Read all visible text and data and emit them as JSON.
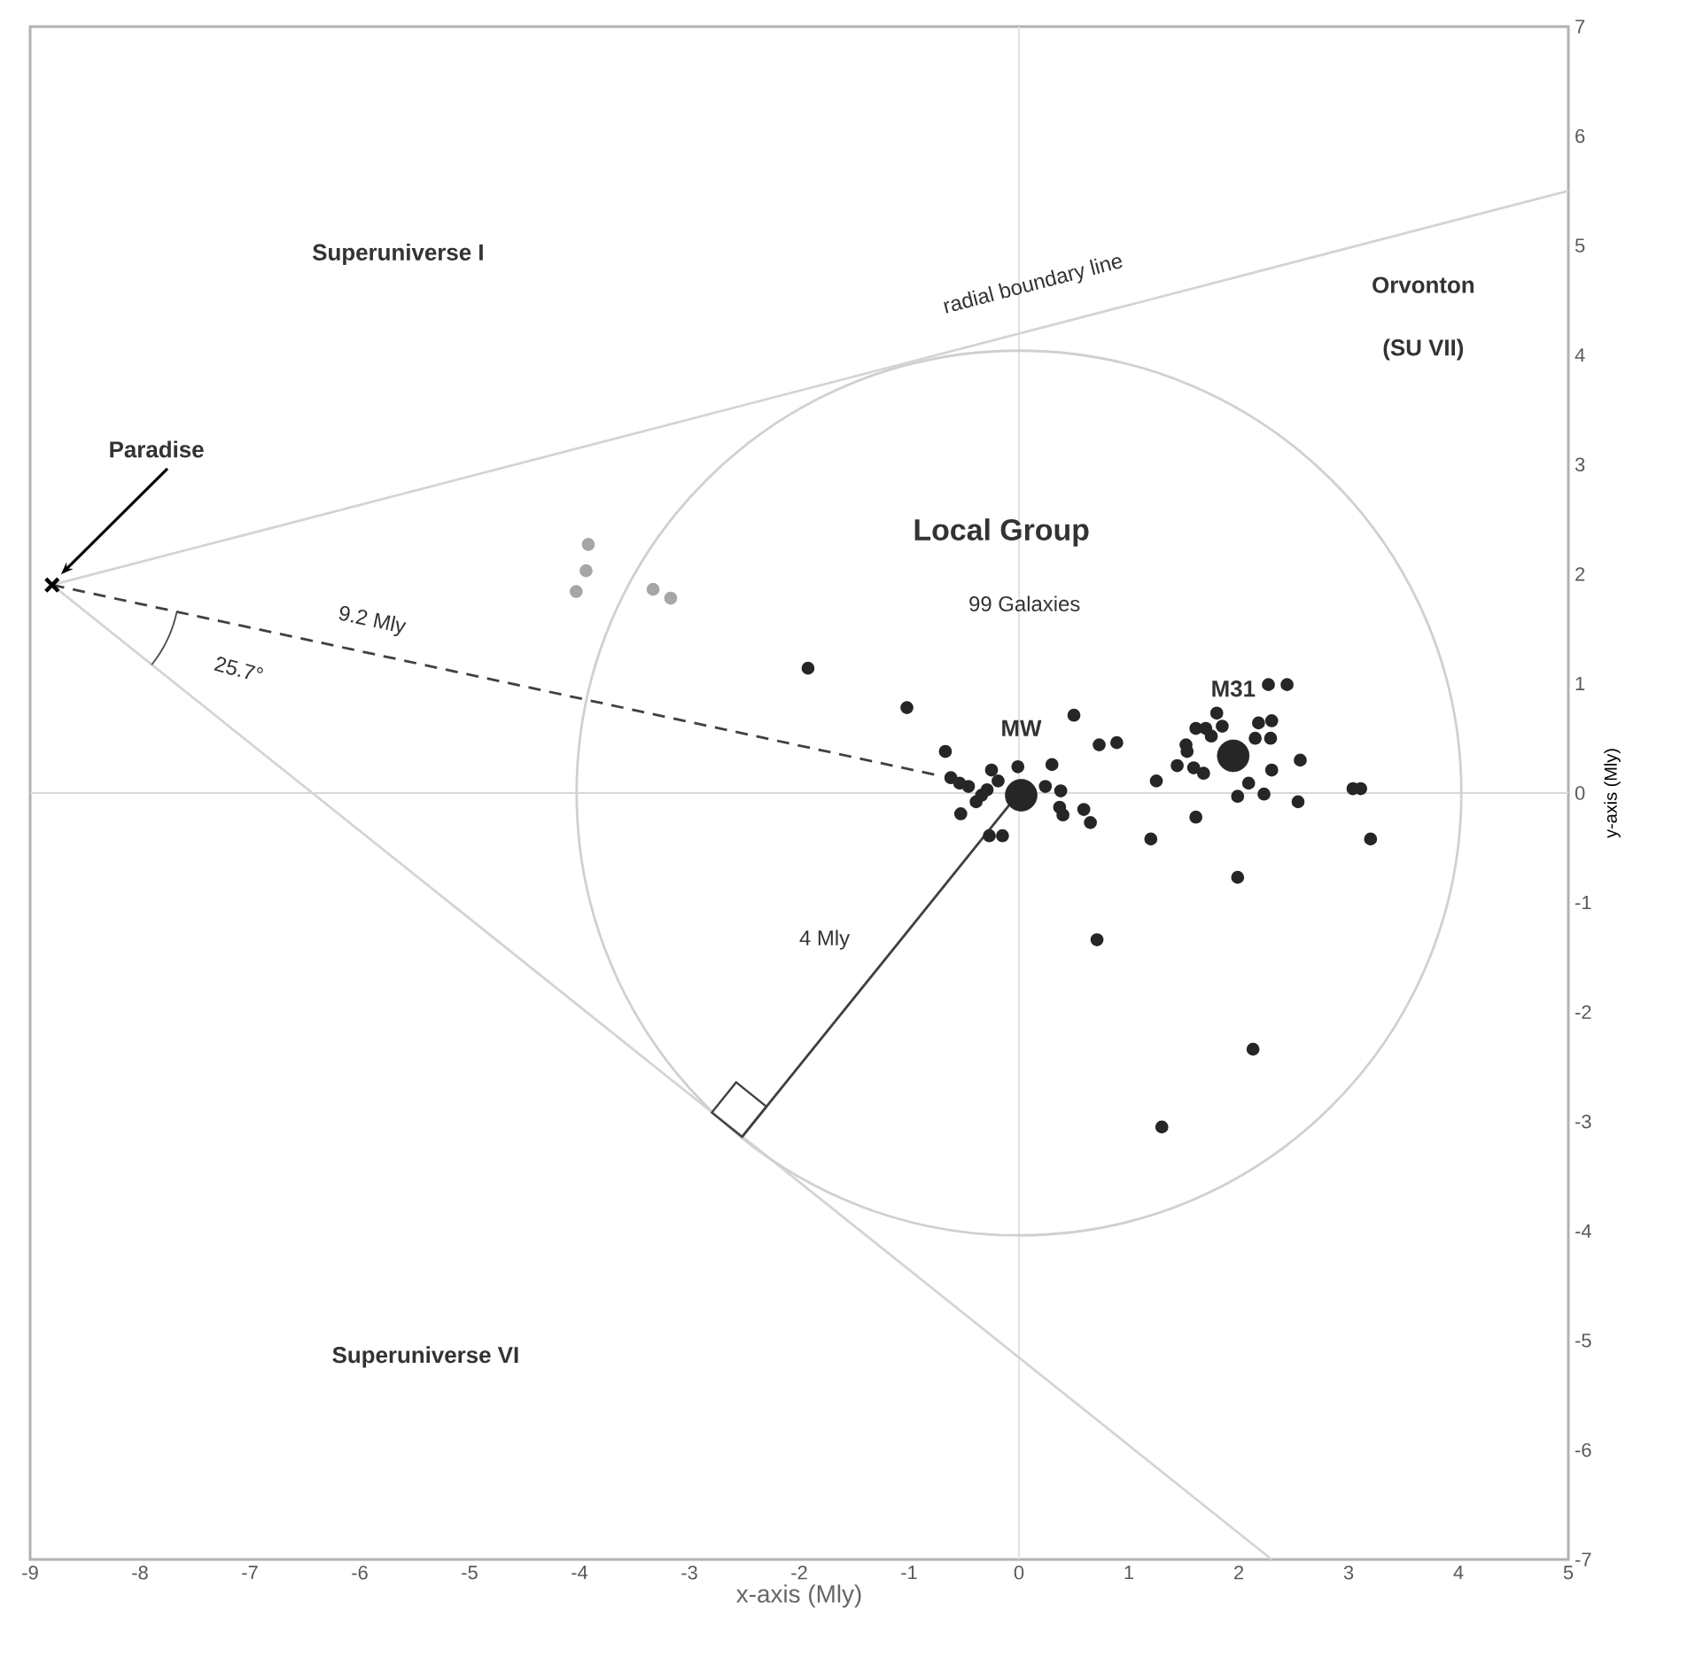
{
  "chart_data": {
    "type": "scatter",
    "xlabel": "x-axis (Mly)",
    "ylabel": "y-axis (Mly)",
    "xlim": [
      -9,
      5
    ],
    "ylim": [
      -7,
      7
    ],
    "xticks": [
      -9,
      -8,
      -7,
      -6,
      -5,
      -4,
      -3,
      -2,
      -1,
      0,
      1,
      2,
      3,
      4,
      5
    ],
    "yticks": [
      -7,
      -6,
      -5,
      -4,
      -3,
      -2,
      -1,
      0,
      1,
      2,
      3,
      4,
      5,
      6,
      7
    ],
    "grid": false,
    "ref_lines": [
      {
        "axis": "x",
        "value": 0,
        "color": "#e2e2e2"
      },
      {
        "axis": "y",
        "value": 0,
        "color": "#d8d8d8"
      }
    ],
    "series": [
      {
        "type": "line",
        "color": "#d4d4d4",
        "x": [
          -8.8,
          5
        ],
        "values": [
          1.9,
          5.5
        ]
      },
      {
        "type": "line",
        "color": "#d4d4d4",
        "x": [
          -8.8,
          2.3
        ],
        "values": [
          1.9,
          -7
        ]
      },
      {
        "type": "line",
        "color": "#404040",
        "line_style": "dashed",
        "x": [
          -8.8,
          -0.73
        ],
        "values": [
          1.9,
          0.16
        ]
      },
      {
        "type": "line",
        "color": "#404040",
        "x": [
          0,
          -2.52
        ],
        "values": [
          0,
          -3.14
        ]
      },
      {
        "marker": "circle",
        "color": "#262626",
        "x": [
          -1.92,
          -1.02,
          0.5,
          0.73,
          0.89,
          -0.67,
          -0.01,
          0.3,
          -0.25,
          -0.62,
          -0.54,
          -0.46,
          -0.19,
          -0.29,
          -0.34,
          -0.39,
          0.38,
          0.24,
          0.37,
          0.4,
          0.59,
          0.65,
          -0.53,
          -0.27,
          -0.15,
          1.2,
          1.25,
          1.44,
          2.27,
          2.44,
          1.8,
          2.3,
          2.18,
          1.61,
          1.7,
          1.85,
          1.75,
          2.15,
          2.29,
          1.52,
          1.53,
          2.56,
          1.59,
          1.68,
          2.3,
          2.09,
          1.99,
          2.23,
          2.54,
          3.04,
          3.11,
          1.61,
          3.2,
          1.99,
          0.71,
          2.13,
          1.3
        ],
        "values": [
          1.14,
          0.78,
          0.71,
          0.44,
          0.46,
          0.38,
          0.24,
          0.26,
          0.21,
          0.14,
          0.09,
          0.06,
          0.11,
          0.03,
          -0.02,
          -0.08,
          0.02,
          0.06,
          -0.13,
          -0.2,
          -0.15,
          -0.27,
          -0.19,
          -0.39,
          -0.39,
          -0.42,
          0.11,
          0.25,
          0.99,
          0.99,
          0.73,
          0.66,
          0.64,
          0.59,
          0.59,
          0.61,
          0.52,
          0.5,
          0.5,
          0.44,
          0.38,
          0.3,
          0.23,
          0.18,
          0.21,
          0.09,
          -0.03,
          -0.01,
          -0.08,
          0.04,
          0.04,
          -0.22,
          -0.42,
          -0.77,
          -1.34,
          -2.34,
          -3.05
        ]
      },
      {
        "type": "bubble",
        "color": "#262626",
        "x": [
          0.02,
          1.95
        ],
        "values": [
          -0.02,
          0.34
        ],
        "sizes": [
          1,
          1
        ]
      },
      {
        "marker": "circle",
        "color": "#a6a6a6",
        "x": [
          -3.92,
          -3.94,
          -4.03,
          -3.33,
          -3.17
        ],
        "values": [
          2.27,
          2.03,
          1.84,
          1.86,
          1.78
        ]
      },
      {
        "marker": "cross",
        "color": "#000000",
        "x": [
          -8.8
        ],
        "values": [
          1.9
        ]
      }
    ],
    "annotations": [
      "Superuniverse I",
      "radial boundary line",
      "Orvonton",
      "(SU VII)",
      "Paradise",
      "Local Group",
      "99 Galaxies",
      {
        "text": "MW",
        "x": 0.02,
        "y": -0.02
      },
      {
        "text": "M31",
        "x": 1.95,
        "y": 0.34
      },
      "9.2 Mly",
      "25.7°",
      "4 Mly",
      "Superuniverse VI"
    ]
  }
}
